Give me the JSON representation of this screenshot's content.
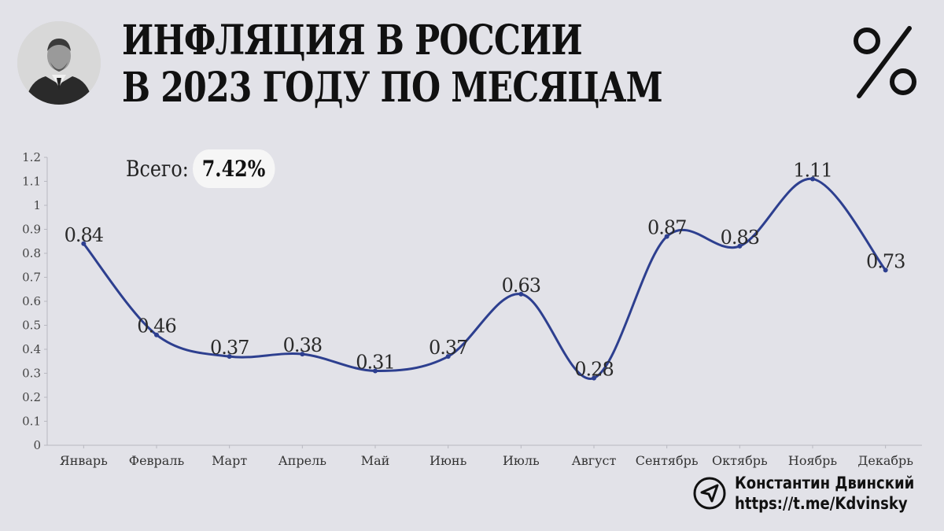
{
  "header": {
    "title_line1": "ИНФЛЯЦИЯ В РОССИИ",
    "title_line2": "В 2023 ГОДУ ПО МЕСЯЦАМ"
  },
  "icons": {
    "portrait": "portrait-photo",
    "corner": "percent-icon",
    "author": "telegram-icon"
  },
  "summary": {
    "label": "Всего:",
    "value": "7.42%"
  },
  "author": {
    "name": "Константин Двинский",
    "link": "https://t.me/Kdvinsky"
  },
  "chart_data": {
    "type": "line",
    "categories": [
      "Январь",
      "Февраль",
      "Март",
      "Апрель",
      "Май",
      "Июнь",
      "Июль",
      "Август",
      "Сентябрь",
      "Октябрь",
      "Ноябрь",
      "Декабрь"
    ],
    "values": [
      0.84,
      0.46,
      0.37,
      0.38,
      0.31,
      0.37,
      0.63,
      0.28,
      0.87,
      0.83,
      1.11,
      0.73
    ],
    "data_labels": [
      "0.84",
      "0.46",
      "0.37",
      "0.38",
      "0.31",
      "0.37",
      "0.63",
      "0.28",
      "0.87",
      "0.83",
      "1.11",
      "0.73"
    ],
    "y_ticks": [
      "0",
      "0.1",
      "0.2",
      "0.3",
      "0.4",
      "0.5",
      "0.6",
      "0.7",
      "0.8",
      "0.9",
      "1",
      "1.1",
      "1.2"
    ],
    "ylim": [
      0,
      1.2
    ],
    "line_color": "#2d3f8f",
    "grid": false
  }
}
